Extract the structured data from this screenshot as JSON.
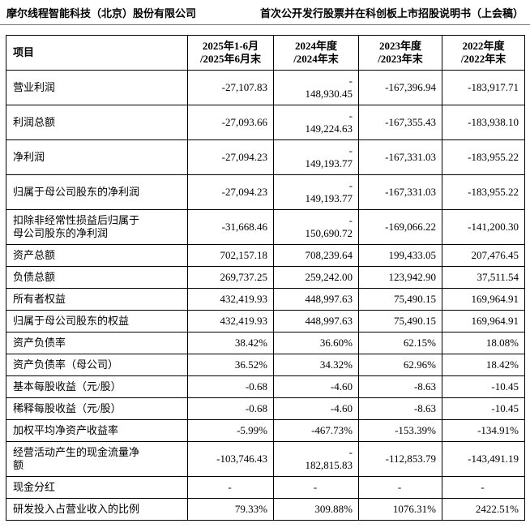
{
  "page": {
    "header_left": "摩尔线程智能科技（北京）股份有限公司",
    "header_right": "首次公开发行股票并在科创板上市招股说明书（上会稿）"
  },
  "table": {
    "columns": [
      "项目",
      "2025年1-6月\n/2025年6月末",
      "2024年度\n/2024年末",
      "2023年度\n/2023年末",
      "2022年度\n/2022年末"
    ],
    "rows": [
      {
        "item": "营业利润",
        "values": [
          "-27,107.83",
          "-\n148,930.45",
          "-167,396.94",
          "-183,917.71"
        ]
      },
      {
        "item": "利润总额",
        "values": [
          "-27,093.66",
          "-\n149,224.63",
          "-167,355.43",
          "-183,938.10"
        ]
      },
      {
        "item": "净利润",
        "values": [
          "-27,094.23",
          "-\n149,193.77",
          "-167,331.03",
          "-183,955.22"
        ]
      },
      {
        "item": "归属于母公司股东的净利润",
        "values": [
          "-27,094.23",
          "-\n149,193.77",
          "-167,331.03",
          "-183,955.22"
        ]
      },
      {
        "item": "扣除非经常性损益后归属于\n母公司股东的净利润",
        "values": [
          "-31,668.46",
          "-\n150,690.72",
          "-169,066.22",
          "-141,200.30"
        ]
      },
      {
        "item": "资产总额",
        "values": [
          "702,157.18",
          "708,239.64",
          "199,433.05",
          "207,476.45"
        ]
      },
      {
        "item": "负债总额",
        "values": [
          "269,737.25",
          "259,242.00",
          "123,942.90",
          "37,511.54"
        ]
      },
      {
        "item": "所有者权益",
        "values": [
          "432,419.93",
          "448,997.63",
          "75,490.15",
          "169,964.91"
        ]
      },
      {
        "item": "归属于母公司股东的权益",
        "values": [
          "432,419.93",
          "448,997.63",
          "75,490.15",
          "169,964.91"
        ]
      },
      {
        "item": "资产负债率",
        "values": [
          "38.42%",
          "36.60%",
          "62.15%",
          "18.08%"
        ]
      },
      {
        "item": "资产负债率（母公司）",
        "values": [
          "36.52%",
          "34.32%",
          "62.96%",
          "18.42%"
        ]
      },
      {
        "item": "基本每股收益（元/股）",
        "values": [
          "-0.68",
          "-4.60",
          "-8.63",
          "-10.45"
        ]
      },
      {
        "item": "稀释每股收益（元/股）",
        "values": [
          "-0.68",
          "-4.60",
          "-8.63",
          "-10.45"
        ]
      },
      {
        "item": "加权平均净资产收益率",
        "values": [
          "-5.99%",
          "-467.73%",
          "-153.39%",
          "-134.91%"
        ]
      },
      {
        "item": "经营活动产生的现金流量净\n额",
        "values": [
          "-103,746.43",
          "-\n182,815.83",
          "-112,853.79",
          "-143,491.19"
        ]
      },
      {
        "item": "现金分红",
        "values": [
          "-",
          "-",
          "-",
          "-"
        ]
      },
      {
        "item": "研发投入占营业收入的比例",
        "values": [
          "79.33%",
          "309.88%",
          "1076.31%",
          "2422.51%"
        ]
      }
    ]
  }
}
